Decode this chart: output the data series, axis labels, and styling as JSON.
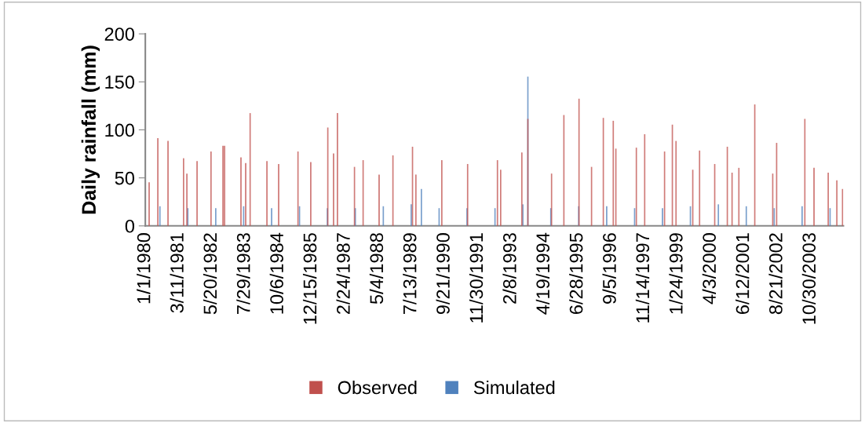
{
  "chart_data": {
    "type": "bar",
    "ylabel": "Daily rainfall (mm)",
    "xlim": [
      "1980-01-01",
      "2004-12-31"
    ],
    "xticks": [
      {
        "value": "1980-01-01",
        "label": "1/1/1980"
      },
      {
        "value": "1981-03-11",
        "label": "3/11/1981"
      },
      {
        "value": "1982-05-20",
        "label": "5/20/1982"
      },
      {
        "value": "1983-07-29",
        "label": "7/29/1983"
      },
      {
        "value": "1984-10-06",
        "label": "10/6/1984"
      },
      {
        "value": "1985-12-15",
        "label": "12/15/1985"
      },
      {
        "value": "1987-02-24",
        "label": "2/24/1987"
      },
      {
        "value": "1988-05-04",
        "label": "5/4/1988"
      },
      {
        "value": "1989-07-13",
        "label": "7/13/1989"
      },
      {
        "value": "1990-09-21",
        "label": "9/21/1990"
      },
      {
        "value": "1991-11-30",
        "label": "11/30/1991"
      },
      {
        "value": "1993-02-08",
        "label": "2/8/1993"
      },
      {
        "value": "1994-04-19",
        "label": "4/19/1994"
      },
      {
        "value": "1995-06-28",
        "label": "6/28/1995"
      },
      {
        "value": "1996-09-05",
        "label": "9/5/1996"
      },
      {
        "value": "1997-11-14",
        "label": "11/14/1997"
      },
      {
        "value": "1999-01-24",
        "label": "1/24/1999"
      },
      {
        "value": "2000-04-03",
        "label": "4/3/2000"
      },
      {
        "value": "2001-06-12",
        "label": "6/12/2001"
      },
      {
        "value": "2002-08-21",
        "label": "8/21/2002"
      },
      {
        "value": "2003-10-30",
        "label": "10/30/2003"
      }
    ],
    "ylim": [
      0,
      200
    ],
    "yticks": [
      0,
      50,
      100,
      150,
      200
    ],
    "grid": false,
    "legend": "bottom",
    "series": [
      {
        "name": "Observed",
        "color": "#c0504d",
        "x": [
          "1980-02-20",
          "1980-06-13",
          "1980-10-24",
          "1981-05-15",
          "1981-06-28",
          "1981-11-08",
          "1982-05-09",
          "1982-10-13",
          "1982-11-03",
          "1983-06-05",
          "1983-08-06",
          "1983-10-03",
          "1984-05-10",
          "1984-10-10",
          "1985-06-20",
          "1985-12-04",
          "1986-07-15",
          "1986-09-28",
          "1986-11-18",
          "1987-06-29",
          "1987-10-20",
          "1988-05-16",
          "1988-11-13",
          "1989-07-27",
          "1989-09-09",
          "1990-08-14",
          "1991-07-18",
          "1992-08-11",
          "1992-09-22",
          "1993-06-26",
          "1993-09-13",
          "1994-07-20",
          "1994-12-28",
          "1995-07-14",
          "1995-12-25",
          "1996-05-27",
          "1996-10-04",
          "1996-11-07",
          "1997-08-02",
          "1997-11-19",
          "1998-08-06",
          "1998-11-16",
          "1999-01-03",
          "1999-08-10",
          "1999-11-07",
          "2000-05-23",
          "2000-11-04",
          "2001-01-05",
          "2001-04-04",
          "2001-10-29",
          "2002-06-21",
          "2002-08-11",
          "2003-08-15",
          "2003-12-13",
          "2004-06-16",
          "2004-10-07",
          "2004-12-20"
        ],
        "values": [
          45,
          91,
          88,
          70,
          54,
          67,
          77,
          83,
          83,
          71,
          65,
          117,
          67,
          64,
          77,
          66,
          102,
          75,
          117,
          61,
          68,
          53,
          73,
          82,
          53,
          68,
          64,
          68,
          58,
          76,
          111,
          54,
          115,
          132,
          61,
          112,
          109,
          80,
          81,
          95,
          77,
          105,
          88,
          58,
          78,
          64,
          82,
          55,
          60,
          126,
          54,
          86,
          111,
          60,
          55,
          47,
          38
        ]
      },
      {
        "name": "Simulated",
        "color": "#4f81bd",
        "x": [
          "1980-07-10",
          "1981-07-10",
          "1982-07-10",
          "1983-07-10",
          "1984-07-10",
          "1985-07-10",
          "1986-07-10",
          "1987-07-10",
          "1988-07-10",
          "1989-07-10",
          "1989-11-20",
          "1990-07-10",
          "1991-07-10",
          "1992-07-10",
          "1993-07-10",
          "1993-09-13",
          "1994-07-10",
          "1995-07-10",
          "1996-07-10",
          "1997-07-10",
          "1998-07-10",
          "1999-07-10",
          "2000-07-10",
          "2001-07-10",
          "2002-07-10",
          "2003-07-10",
          "2004-07-10"
        ],
        "values": [
          20,
          18,
          18,
          20,
          18,
          20,
          18,
          18,
          20,
          22,
          38,
          18,
          18,
          18,
          22,
          155,
          18,
          20,
          20,
          18,
          18,
          20,
          22,
          20,
          18,
          20,
          18
        ]
      }
    ]
  }
}
